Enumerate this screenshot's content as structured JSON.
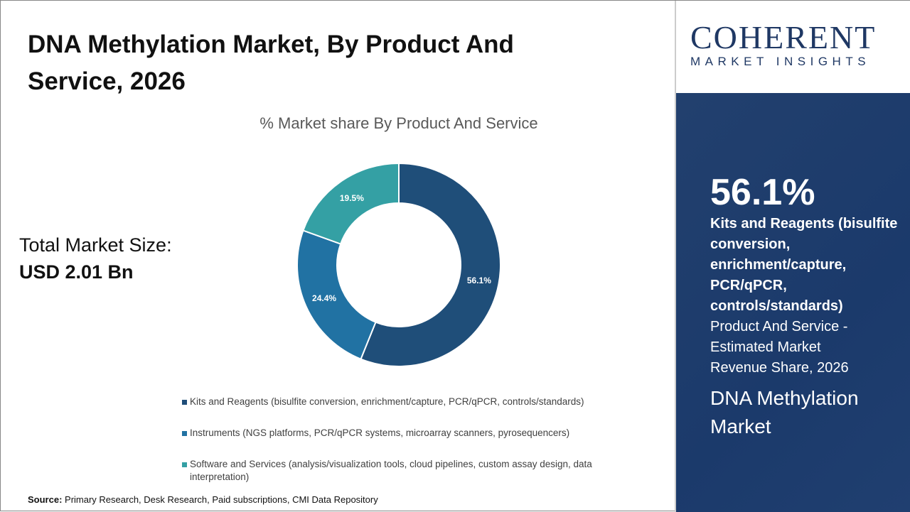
{
  "title": "DNA Methylation Market, By Product And Service, 2026",
  "total": {
    "label": "Total Market Size:",
    "value": "USD 2.01 Bn"
  },
  "source": {
    "label": "Source:",
    "text": " Primary Research, Desk Research, Paid subscriptions, CMI Data Repository"
  },
  "logo": {
    "line1": "COHERENT",
    "line2": "MARKET INSIGHTS"
  },
  "highlight": {
    "value": "56.1%",
    "segment": "Kits and Reagents (bisulfite conversion, enrichment/capture, PCR/qPCR, controls/standards)",
    "description": "Product And Service - Estimated Market Revenue Share, 2026",
    "market": "DNA Methylation Market"
  },
  "chart_data": {
    "type": "pie",
    "donut": true,
    "title": "% Market share By Product And Service",
    "categories": [
      "Kits and Reagents (bisulfite conversion, enrichment/capture, PCR/qPCR, controls/standards)",
      "Instruments (NGS platforms, PCR/qPCR systems, microarray scanners, pyrosequencers)",
      "Software and Services (analysis/visualization tools, cloud pipelines, custom assay design, data interpretation)"
    ],
    "values": [
      56.1,
      24.4,
      19.5
    ],
    "data_labels": [
      "56.1%",
      "24.4%",
      "19.5%"
    ],
    "colors": [
      "#1f4e79",
      "#2172a3",
      "#34a0a4"
    ],
    "legend_placement": "bottom"
  }
}
